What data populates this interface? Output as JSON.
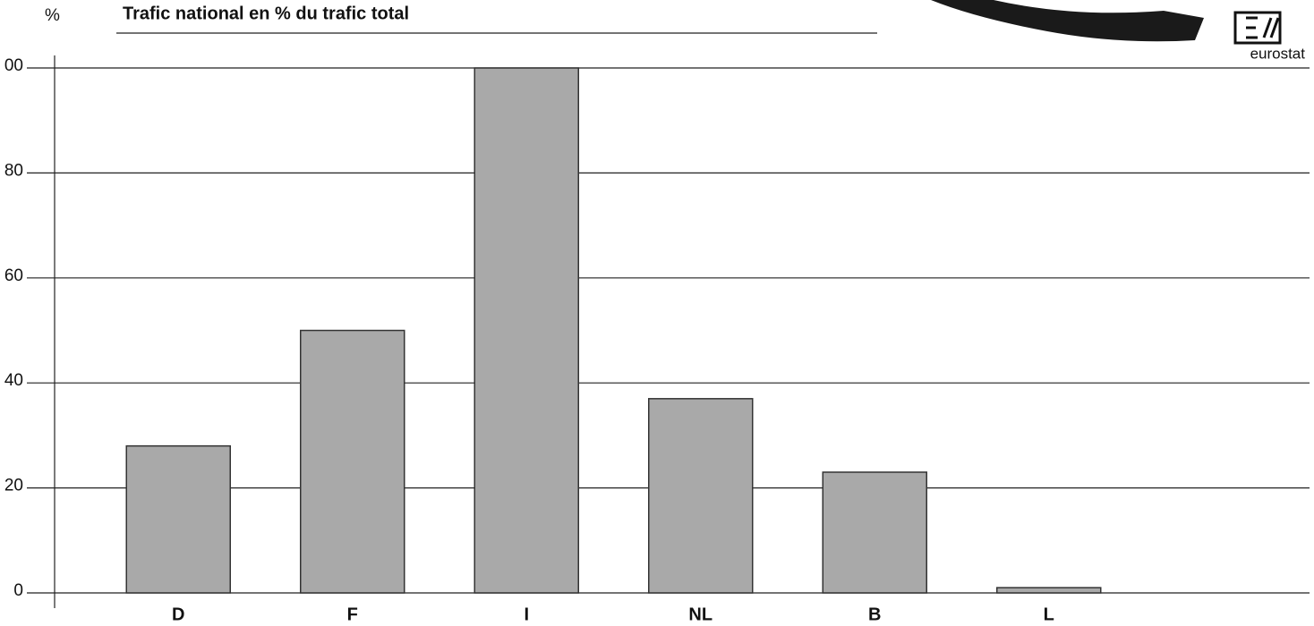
{
  "chart_data": {
    "type": "bar",
    "title": "Trafic national en % du trafic total",
    "y_label": "%",
    "categories": [
      "D",
      "F",
      "I",
      "NL",
      "B",
      "L"
    ],
    "values": [
      28,
      50,
      100,
      37,
      23,
      1
    ],
    "color": "#a9a9a9",
    "ylim": [
      0,
      100
    ],
    "yticks": [
      0,
      20,
      40,
      60,
      80,
      {
        "value": 100,
        "label": "00"
      }
    ],
    "grid": true
  },
  "logo": "eurostat"
}
